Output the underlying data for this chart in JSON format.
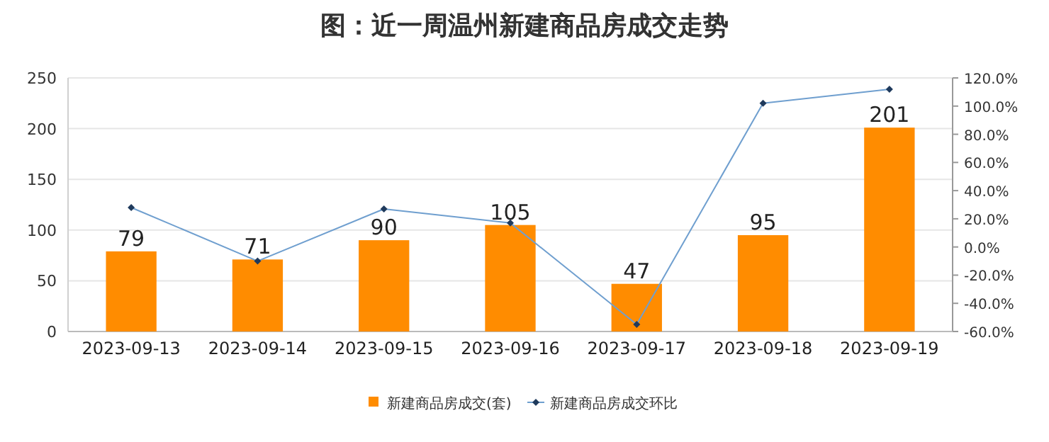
{
  "chart_data": {
    "type": "bar",
    "title": "图：近一周温州新建商品房成交走势",
    "categories": [
      "2023-09-13",
      "2023-09-14",
      "2023-09-15",
      "2023-09-16",
      "2023-09-17",
      "2023-09-18",
      "2023-09-19"
    ],
    "series": [
      {
        "name": "新建商品房成交(套)",
        "color": "#ff8c00",
        "values": [
          79,
          71,
          90,
          105,
          47,
          95,
          201
        ],
        "value_labels": [
          "79",
          "71",
          "90",
          "105",
          "47",
          "95",
          "201"
        ]
      },
      {
        "name": "新建商品房成交环比",
        "type": "line",
        "axis": "y2",
        "color": "#6f9fcf",
        "marker": "diamond",
        "values": [
          28,
          -10,
          27,
          17,
          -55,
          102,
          112
        ]
      }
    ],
    "ylim": [
      0,
      250
    ],
    "yticks": [
      0,
      50,
      100,
      150,
      200,
      250
    ],
    "y2lim": [
      -60,
      120
    ],
    "y2ticks": [
      {
        "value": -60,
        "label": "-60.0%"
      },
      {
        "value": -40,
        "label": "-40.0%"
      },
      {
        "value": -20,
        "label": "-20.0%"
      },
      {
        "value": 0,
        "label": "0.0%"
      },
      {
        "value": 20,
        "label": "20.0%"
      },
      {
        "value": 40,
        "label": "40.0%"
      },
      {
        "value": 60,
        "label": "60.0%"
      },
      {
        "value": 80,
        "label": "80.0%"
      },
      {
        "value": 100,
        "label": "100.0%"
      },
      {
        "value": 120,
        "label": "120.0%"
      }
    ],
    "grid": "y",
    "legend": "bottom"
  }
}
